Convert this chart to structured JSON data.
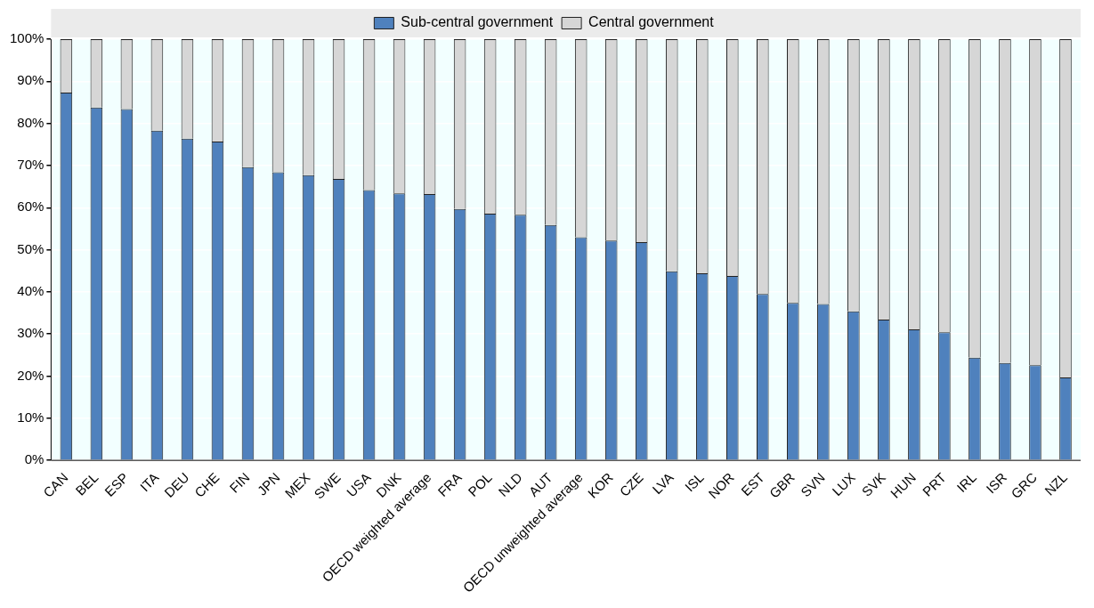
{
  "chart_data": {
    "type": "bar",
    "stacked": true,
    "grid": "y",
    "legend": "top",
    "categories": [
      "CAN",
      "BEL",
      "ESP",
      "ITA",
      "DEU",
      "CHE",
      "FIN",
      "JPN",
      "MEX",
      "SWE",
      "USA",
      "DNK",
      "OECD weighted average",
      "FRA",
      "POL",
      "NLD",
      "AUT",
      "OECD unweighted average",
      "KOR",
      "CZE",
      "LVA",
      "ISL",
      "NOR",
      "EST",
      "GBR",
      "SVN",
      "LUX",
      "SVK",
      "HUN",
      "PRT",
      "IRL",
      "ISR",
      "GRC",
      "NZL"
    ],
    "series": [
      {
        "name": "Sub-central government",
        "color": "#4f81bd",
        "values": [
          87.3,
          83.8,
          83.4,
          78.3,
          76.4,
          75.7,
          69.6,
          68.4,
          67.7,
          66.8,
          64.2,
          63.4,
          63.2,
          59.7,
          58.6,
          58.3,
          55.9,
          53.0,
          52.2,
          51.8,
          44.9,
          44.4,
          43.8,
          39.5,
          37.4,
          37.1,
          35.4,
          33.4,
          31.1,
          30.4,
          24.4,
          23.1,
          22.6,
          19.7
        ]
      },
      {
        "name": "Central government",
        "color": "#d6d6d6",
        "values": [
          12.7,
          16.2,
          16.6,
          21.7,
          23.6,
          24.3,
          30.4,
          31.6,
          32.3,
          33.2,
          35.8,
          36.6,
          36.8,
          40.3,
          41.4,
          41.7,
          44.1,
          47.0,
          47.8,
          48.2,
          55.1,
          55.6,
          56.2,
          60.5,
          62.6,
          62.9,
          64.6,
          66.6,
          68.9,
          69.6,
          75.6,
          76.9,
          77.4,
          80.3
        ]
      }
    ],
    "ylim": [
      0,
      100
    ],
    "yticks": [
      {
        "value": 0,
        "label": "0%"
      },
      {
        "value": 10,
        "label": "10%"
      },
      {
        "value": 20,
        "label": "20%"
      },
      {
        "value": 30,
        "label": "30%"
      },
      {
        "value": 40,
        "label": "40%"
      },
      {
        "value": 50,
        "label": "50%"
      },
      {
        "value": 60,
        "label": "60%"
      },
      {
        "value": 70,
        "label": "70%"
      },
      {
        "value": 80,
        "label": "80%"
      },
      {
        "value": 90,
        "label": "90%"
      },
      {
        "value": 100,
        "label": "100%"
      }
    ]
  }
}
